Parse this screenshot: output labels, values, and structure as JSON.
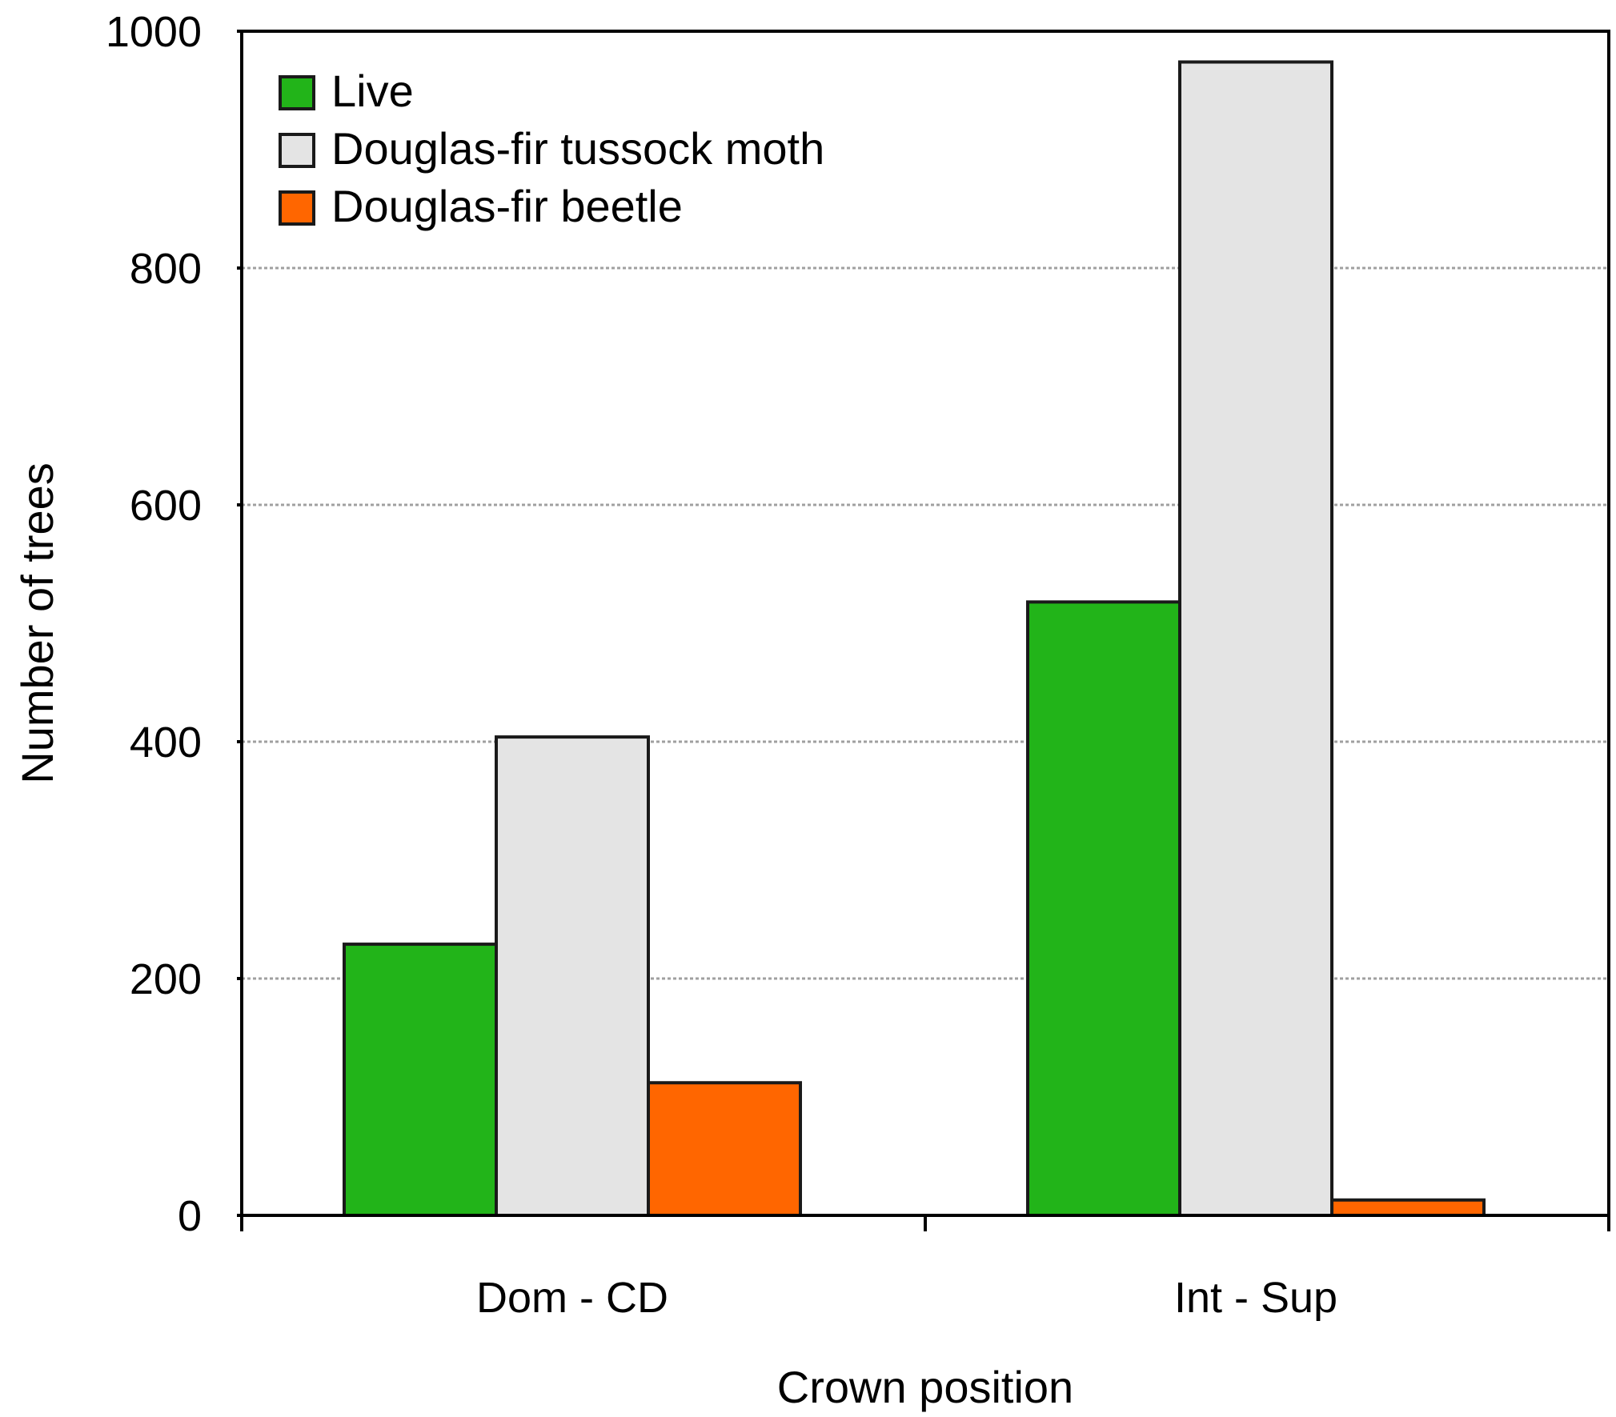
{
  "chart_data": {
    "type": "bar",
    "title": "",
    "xlabel": "Crown position",
    "ylabel": "Number of trees",
    "categories": [
      "Dom - CD",
      "Int - Sup"
    ],
    "series": [
      {
        "name": "Live",
        "color": "#22b419",
        "values": [
          229,
          518
        ]
      },
      {
        "name": "Douglas-fir tussock moth",
        "color": "#e4e4e4",
        "values": [
          404,
          974
        ]
      },
      {
        "name": "Douglas-fir beetle",
        "color": "#ff6600",
        "values": [
          112,
          13
        ]
      }
    ],
    "ylim": [
      0,
      1000
    ],
    "yticks": [
      "0",
      "200",
      "400",
      "600",
      "800",
      "1000"
    ],
    "grid": "horizontal dotted",
    "legend_position": "top-left"
  }
}
